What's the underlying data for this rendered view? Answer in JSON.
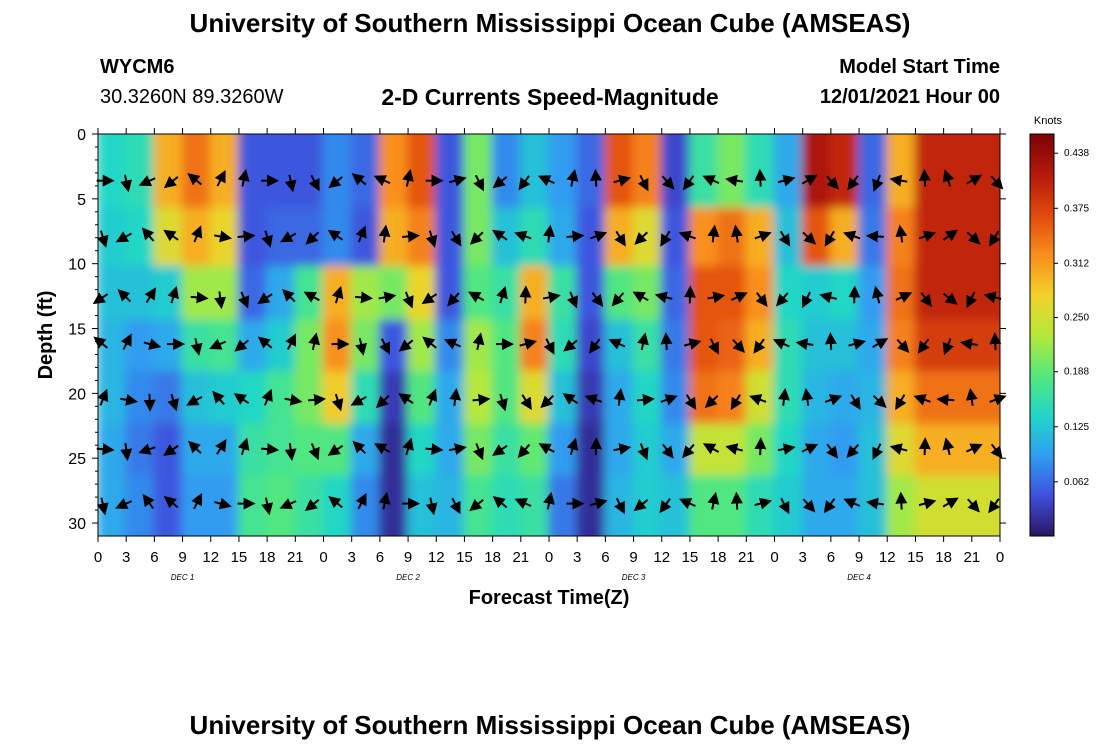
{
  "header": {
    "title": "University of Southern Mississippi Ocean Cube (AMSEAS)",
    "station_id": "WYCM6",
    "station_coords": "30.3260N  89.3260W",
    "plot_subtitle": "2-D Currents Speed-Magnitude",
    "model_start_label": "Model Start Time",
    "model_start_value": "12/01/2021 Hour 00"
  },
  "footer": {
    "title": "University of Southern Mississippi Ocean Cube (AMSEAS)"
  },
  "chart_data": {
    "type": "heatmap",
    "title": "2-D Currents Speed-Magnitude",
    "xlabel": "Forecast Time(Z)",
    "ylabel": "Depth (ft)",
    "x_tick_labels": [
      "0",
      "3",
      "6",
      "9",
      "12",
      "15",
      "18",
      "21",
      "0",
      "3",
      "6",
      "9",
      "12",
      "15",
      "18",
      "21",
      "0",
      "3",
      "6",
      "9",
      "12",
      "15",
      "18",
      "21",
      "0",
      "3",
      "6",
      "9",
      "12",
      "15",
      "18",
      "21",
      "0"
    ],
    "x_day_labels": [
      "DEC 1",
      "DEC 2",
      "DEC 3",
      "DEC 4"
    ],
    "xlim_hours": [
      0,
      96
    ],
    "y_tick_labels": [
      "0",
      "5",
      "10",
      "15",
      "20",
      "25",
      "30"
    ],
    "ylim": [
      0,
      31
    ],
    "y_inverted": true,
    "colorbar": {
      "label": "Knots",
      "ticks": [
        "0.438",
        "0.375",
        "0.312",
        "0.250",
        "0.188",
        "0.125",
        "0.062"
      ],
      "range": [
        0,
        0.46
      ],
      "colors": [
        "#2a1563",
        "#3f4fdc",
        "#2f9ff2",
        "#22d6c8",
        "#55e87a",
        "#b6e83a",
        "#f2d12a",
        "#f98d1d",
        "#e0480d",
        "#b3190b",
        "#7a0404"
      ]
    },
    "depth_levels_ft": [
      3.6,
      7.9,
      12.6,
      16.2,
      20.5,
      24.3,
      28.5
    ],
    "vector_hours": [
      0.5,
      3,
      5.5,
      8,
      10.5,
      13,
      15.5,
      18,
      20.5,
      23,
      25.5,
      28,
      30.5,
      33,
      35.5,
      38,
      40.5,
      43,
      45.5,
      48,
      50.5,
      53,
      55.5,
      58,
      60.5,
      63,
      65.5,
      68,
      70.5,
      73,
      75.5,
      78,
      80.5,
      83,
      85.5,
      88,
      90.5,
      93,
      95.5
    ],
    "speed_columns": [
      {
        "hour": 0,
        "speeds": [
          0.14,
          0.13,
          0.12,
          0.11,
          0.11,
          0.1,
          0.1
        ]
      },
      {
        "hour": 3,
        "speeds": [
          0.15,
          0.14,
          0.12,
          0.09,
          0.08,
          0.07,
          0.08
        ]
      },
      {
        "hour": 6,
        "speeds": [
          0.3,
          0.26,
          0.13,
          0.1,
          0.07,
          0.05,
          0.05
        ]
      },
      {
        "hour": 9,
        "speeds": [
          0.34,
          0.3,
          0.22,
          0.16,
          0.12,
          0.1,
          0.09
        ]
      },
      {
        "hour": 12,
        "speeds": [
          0.3,
          0.27,
          0.22,
          0.17,
          0.13,
          0.1,
          0.09
        ]
      },
      {
        "hour": 15,
        "speeds": [
          0.05,
          0.05,
          0.06,
          0.1,
          0.14,
          0.16,
          0.17
        ]
      },
      {
        "hour": 18,
        "speeds": [
          0.05,
          0.06,
          0.1,
          0.13,
          0.17,
          0.17,
          0.18
        ]
      },
      {
        "hour": 21,
        "speeds": [
          0.05,
          0.06,
          0.17,
          0.2,
          0.2,
          0.18,
          0.16
        ]
      },
      {
        "hour": 24,
        "speeds": [
          0.08,
          0.08,
          0.3,
          0.32,
          0.28,
          0.18,
          0.14
        ]
      },
      {
        "hour": 27,
        "speeds": [
          0.06,
          0.05,
          0.22,
          0.2,
          0.15,
          0.1,
          0.08
        ]
      },
      {
        "hour": 30,
        "speeds": [
          0.32,
          0.3,
          0.2,
          0.05,
          0.03,
          0.02,
          0.02
        ]
      },
      {
        "hour": 33,
        "speeds": [
          0.36,
          0.33,
          0.27,
          0.22,
          0.18,
          0.14,
          0.12
        ]
      },
      {
        "hour": 36,
        "speeds": [
          0.05,
          0.05,
          0.05,
          0.08,
          0.1,
          0.1,
          0.11
        ]
      },
      {
        "hour": 39,
        "speeds": [
          0.2,
          0.2,
          0.18,
          0.22,
          0.23,
          0.2,
          0.17
        ]
      },
      {
        "hour": 42,
        "speeds": [
          0.08,
          0.12,
          0.16,
          0.18,
          0.18,
          0.16,
          0.15
        ]
      },
      {
        "hour": 45,
        "speeds": [
          0.12,
          0.15,
          0.3,
          0.33,
          0.26,
          0.19,
          0.16
        ]
      },
      {
        "hour": 48,
        "speeds": [
          0.09,
          0.1,
          0.16,
          0.15,
          0.12,
          0.09,
          0.07
        ]
      },
      {
        "hour": 51,
        "speeds": [
          0.06,
          0.05,
          0.05,
          0.04,
          0.03,
          0.02,
          0.02
        ]
      },
      {
        "hour": 54,
        "speeds": [
          0.36,
          0.3,
          0.18,
          0.12,
          0.1,
          0.1,
          0.11
        ]
      },
      {
        "hour": 57,
        "speeds": [
          0.33,
          0.26,
          0.2,
          0.16,
          0.14,
          0.13,
          0.13
        ]
      },
      {
        "hour": 60,
        "speeds": [
          0.04,
          0.05,
          0.06,
          0.07,
          0.08,
          0.1,
          0.12
        ]
      },
      {
        "hour": 63,
        "speeds": [
          0.16,
          0.32,
          0.36,
          0.36,
          0.34,
          0.24,
          0.18
        ]
      },
      {
        "hour": 66,
        "speeds": [
          0.2,
          0.34,
          0.36,
          0.35,
          0.33,
          0.24,
          0.18
        ]
      },
      {
        "hour": 69,
        "speeds": [
          0.15,
          0.3,
          0.32,
          0.3,
          0.25,
          0.2,
          0.15
        ]
      },
      {
        "hour": 72,
        "speeds": [
          0.1,
          0.12,
          0.14,
          0.15,
          0.15,
          0.14,
          0.13
        ]
      },
      {
        "hour": 75,
        "speeds": [
          0.42,
          0.36,
          0.13,
          0.12,
          0.11,
          0.1,
          0.1
        ]
      },
      {
        "hour": 78,
        "speeds": [
          0.4,
          0.3,
          0.14,
          0.12,
          0.1,
          0.09,
          0.1
        ]
      },
      {
        "hour": 81,
        "speeds": [
          0.06,
          0.07,
          0.09,
          0.1,
          0.11,
          0.12,
          0.12
        ]
      },
      {
        "hour": 84,
        "speeds": [
          0.3,
          0.33,
          0.34,
          0.33,
          0.3,
          0.26,
          0.22
        ]
      },
      {
        "hour": 87,
        "speeds": [
          0.4,
          0.4,
          0.4,
          0.38,
          0.34,
          0.3,
          0.25
        ]
      }
    ]
  }
}
